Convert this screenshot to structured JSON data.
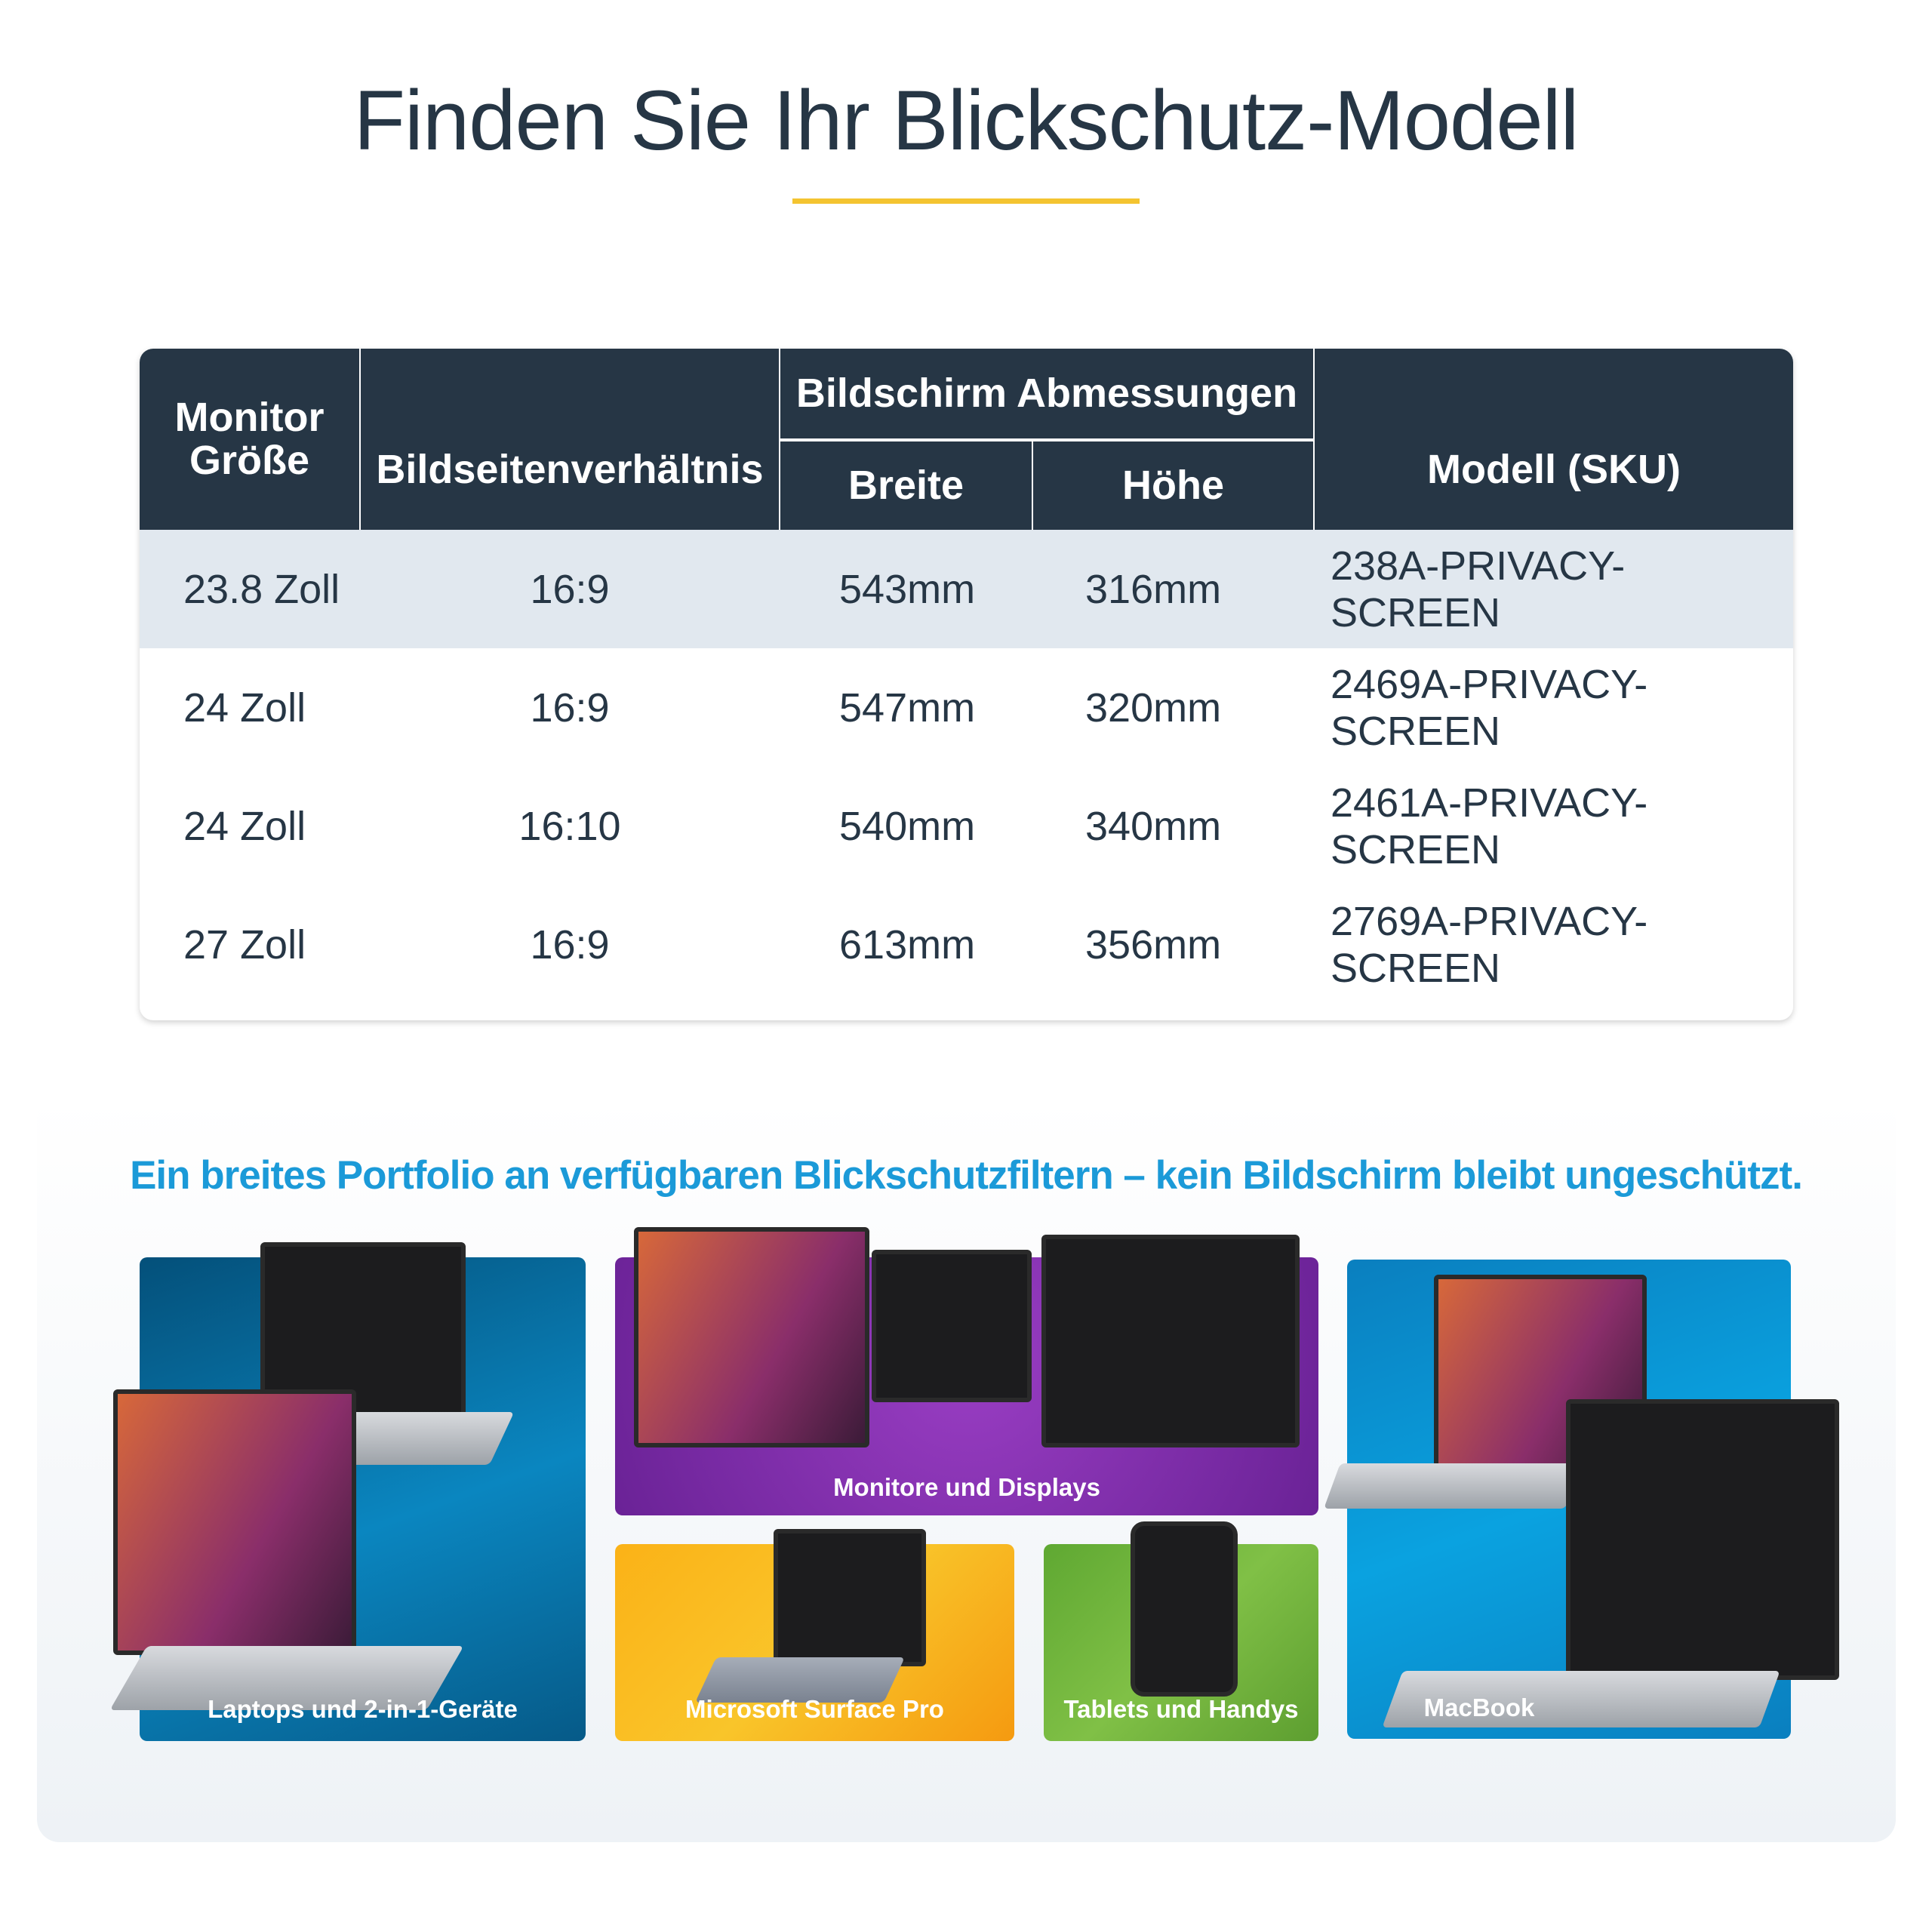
{
  "title": "Finden Sie Ihr Blickschutz-Modell",
  "colors": {
    "accent": "#f4c430",
    "header_bg": "#263645",
    "alt_row": "#e1e8ef",
    "subtitle": "#1b9ad8",
    "laptops": "#0a6fa0",
    "monitors": "#7d2ea8",
    "surface": "#f9b21a",
    "tablets": "#6db33f",
    "macbook": "#0a8ccc"
  },
  "table": {
    "headers": {
      "size": "Monitor Größe",
      "aspect": "Bildseitenverhältnis",
      "dimensions": "Bildschirm Abmessungen",
      "width": "Breite",
      "height": "Höhe",
      "sku": "Modell (SKU)"
    },
    "rows": [
      {
        "size": "23.8 Zoll",
        "aspect": "16:9",
        "width": "543mm",
        "height": "316mm",
        "sku": "238A-PRIVACY-SCREEN"
      },
      {
        "size": "24 Zoll",
        "aspect": "16:9",
        "width": "547mm",
        "height": "320mm",
        "sku": "2469A-PRIVACY-SCREEN"
      },
      {
        "size": "24 Zoll",
        "aspect": "16:10",
        "width": "540mm",
        "height": "340mm",
        "sku": "2461A-PRIVACY-SCREEN"
      },
      {
        "size": "27 Zoll",
        "aspect": "16:9",
        "width": "613mm",
        "height": "356mm",
        "sku": "2769A-PRIVACY-SCREEN"
      }
    ]
  },
  "portfolio": {
    "subtitle": "Ein breites Portfolio an verfügbaren Blickschutzfiltern – kein Bildschirm bleibt ungeschützt.",
    "tiles": [
      {
        "label": "Laptops und 2-in-1-Geräte"
      },
      {
        "label": "Monitore und Displays"
      },
      {
        "label": "Microsoft Surface Pro"
      },
      {
        "label": "Tablets und Handys"
      },
      {
        "label": "MacBook"
      }
    ]
  }
}
